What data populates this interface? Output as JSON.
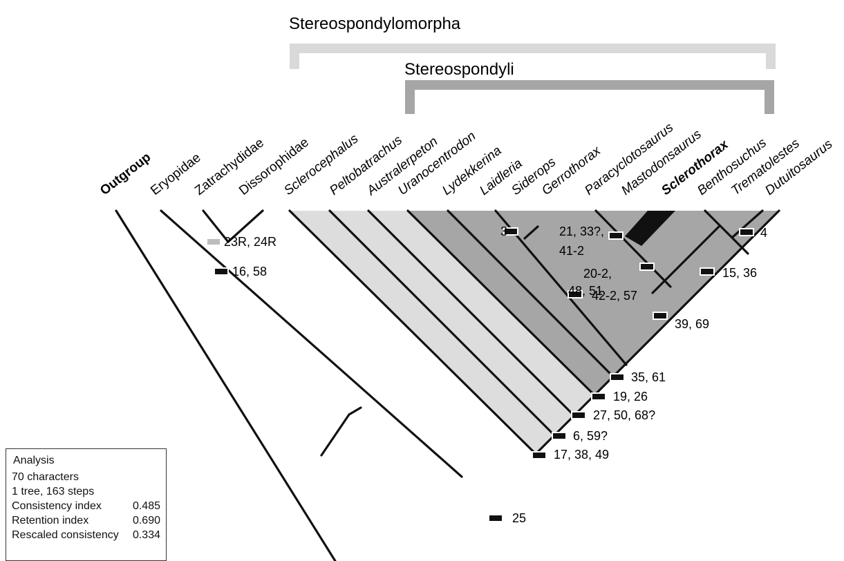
{
  "brackets": {
    "outer_label": "Stereospondylomorpha",
    "inner_label": "Stereospondyli"
  },
  "taxa": [
    {
      "name": "Outgroup",
      "bold": true
    },
    {
      "name": "Eryopidae"
    },
    {
      "name": "Zatrachydidae"
    },
    {
      "name": "Dissorophidae"
    },
    {
      "name": "Sclerocephalus",
      "italic": true
    },
    {
      "name": "Peltobatrachus",
      "italic": true
    },
    {
      "name": "Australerpeton",
      "italic": true
    },
    {
      "name": "Uranocentrodon",
      "italic": true
    },
    {
      "name": "Lydekkerina",
      "italic": true
    },
    {
      "name": "Laidleria",
      "italic": true
    },
    {
      "name": "Siderops",
      "italic": true
    },
    {
      "name": "Gerrothorax",
      "italic": true
    },
    {
      "name": "Paracyclotosaurus",
      "italic": true
    },
    {
      "name": "Mastodonsaurus",
      "italic": true
    },
    {
      "name": "Sclerothorax",
      "italic": true,
      "bold": true
    },
    {
      "name": "Benthosuchus",
      "italic": true
    },
    {
      "name": "Trematolestes",
      "italic": true
    },
    {
      "name": "Dutuitosaurus",
      "italic": true
    }
  ],
  "characters": [
    {
      "text": "23R, 24R",
      "marker": "grey"
    },
    {
      "text": "16, 58",
      "marker": "black"
    },
    {
      "text": "25",
      "marker": "black"
    },
    {
      "text": "17, 38, 49",
      "marker": "black"
    },
    {
      "text": "6, 59?",
      "marker": "black"
    },
    {
      "text": "27, 50, 68?",
      "marker": "black"
    },
    {
      "text": "19, 26",
      "marker": "black"
    },
    {
      "text": "35, 61",
      "marker": "black"
    },
    {
      "text": "39, 69",
      "marker": "black"
    },
    {
      "text": "42-2, 57",
      "marker": "black"
    },
    {
      "text": "3",
      "marker": "black"
    },
    {
      "text": "21, 33?,",
      "marker": "black"
    },
    {
      "text": "41-2",
      "marker": "none"
    },
    {
      "text": "20-2,",
      "marker": "black"
    },
    {
      "text": "48, 51",
      "marker": "none"
    },
    {
      "text": "15, 36",
      "marker": "black"
    },
    {
      "text": "4",
      "marker": "black"
    }
  ],
  "legend": {
    "title": "Analysis",
    "lines": [
      "70 characters",
      "1 tree, 163 steps"
    ],
    "stats": [
      {
        "label": "Consistency index",
        "value": "0.485"
      },
      {
        "label": "Retention index",
        "value": "0.690"
      },
      {
        "label": "Rescaled consistency",
        "value": "0.334"
      }
    ]
  },
  "colors": {
    "branch": "#111111",
    "light_fill": "#dddddd",
    "dark_fill": "#a6a6a6",
    "outer_bracket": "#d9d9d9",
    "inner_bracket": "#a6a6a6",
    "grey_marker": "#bdbdbd",
    "black_marker": "#111111"
  }
}
